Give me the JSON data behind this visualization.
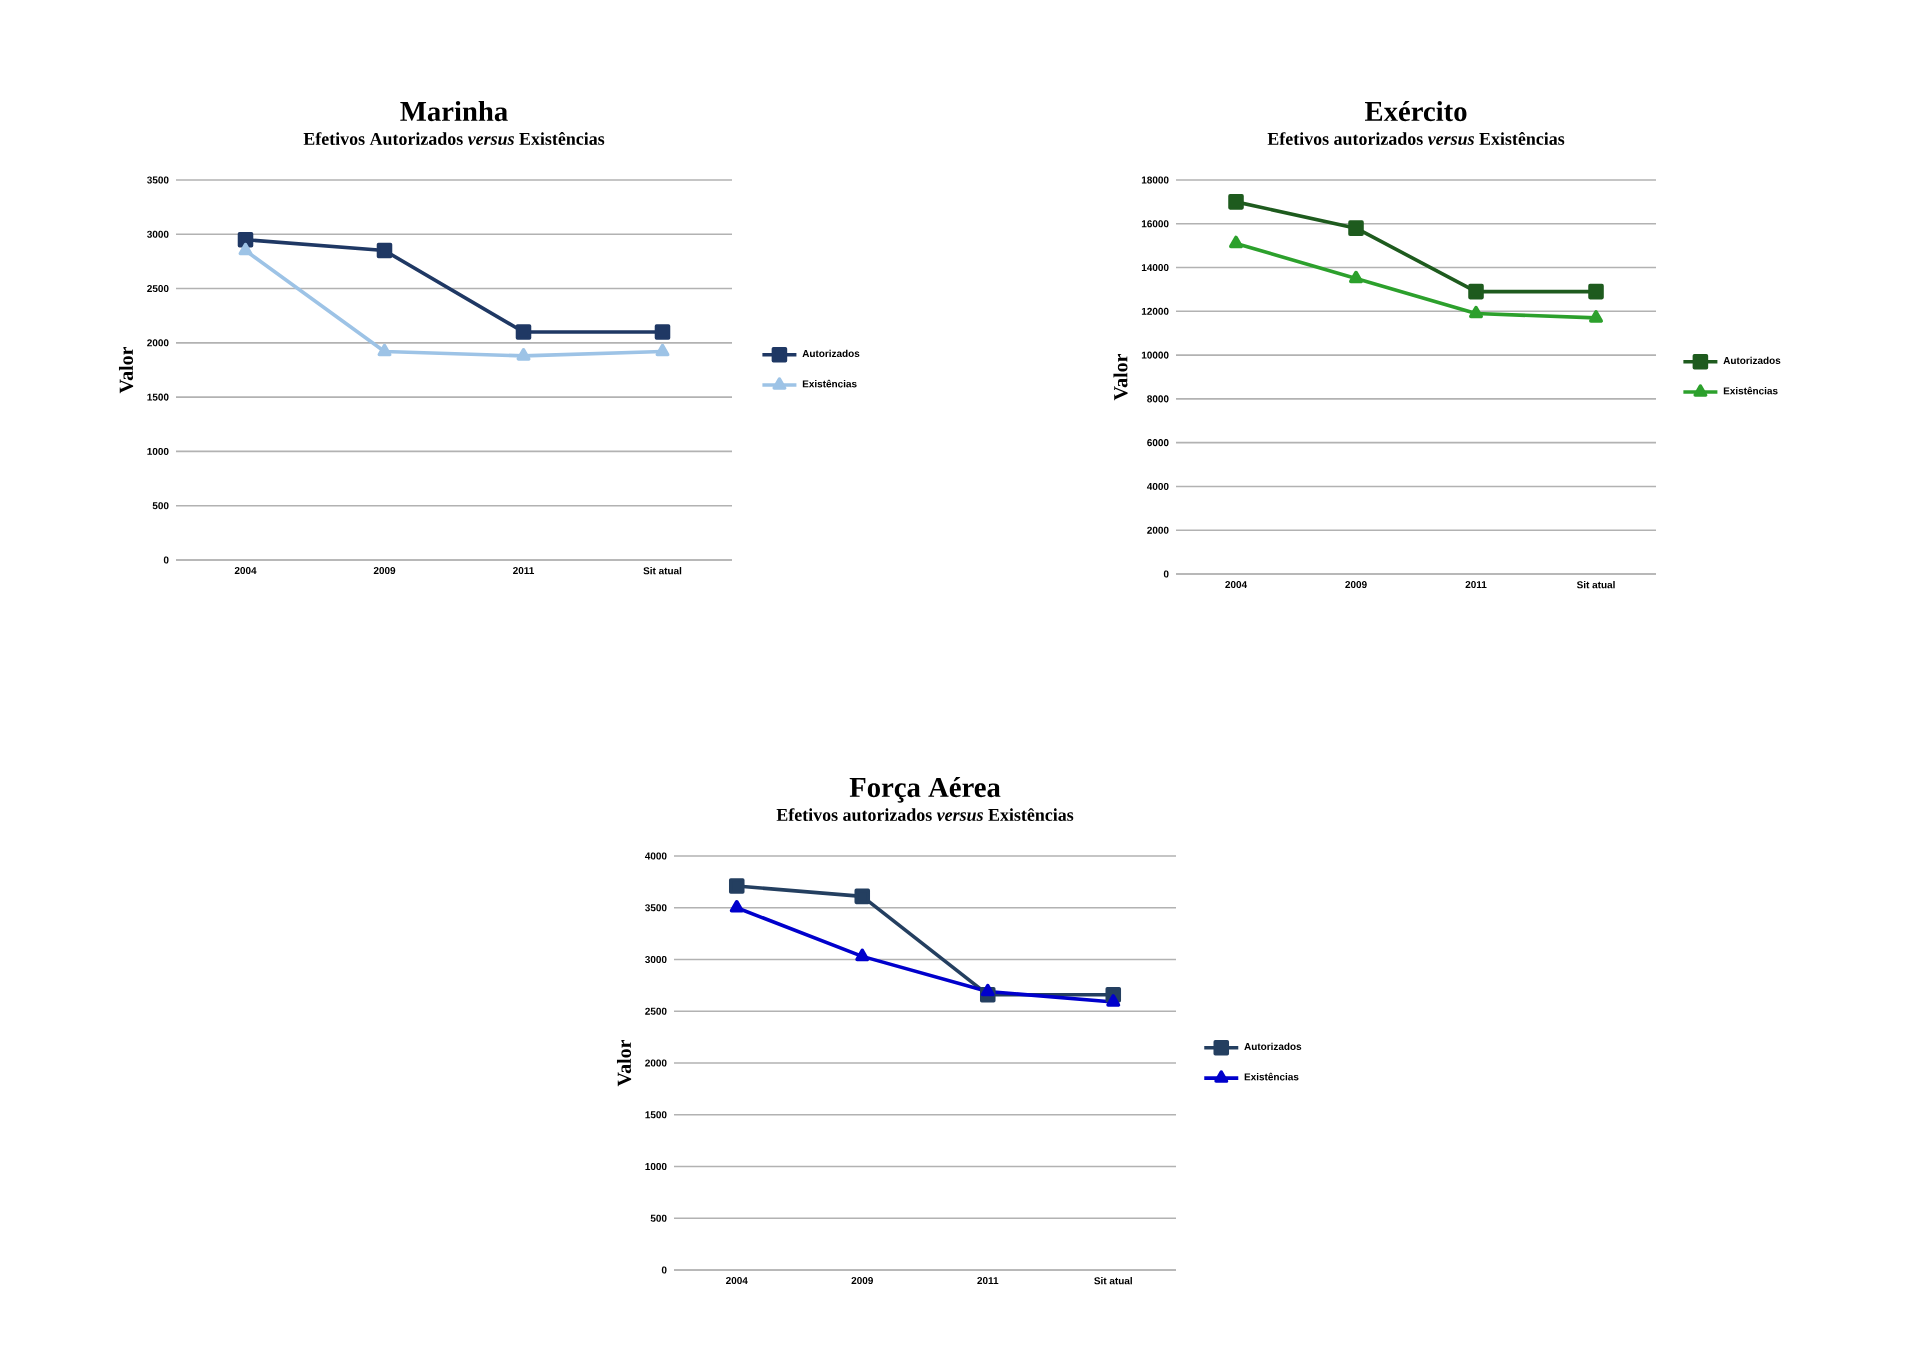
{
  "chart_data": [
    {
      "type": "line",
      "title": "Marinha",
      "subtitle": "Efetivos Autorizados *versus* Existências",
      "ylabel": "Valor",
      "categories": [
        "2004",
        "2009",
        "2011",
        "Sit atual"
      ],
      "ylim": [
        0,
        3500
      ],
      "yticks": [
        0,
        500,
        1000,
        1500,
        2000,
        2500,
        3000,
        3500
      ],
      "grid": "y",
      "legend": "right",
      "series": [
        {
          "name": "Autorizados",
          "color": "#1f3864",
          "marker": "square",
          "values": [
            2950,
            2850,
            2100,
            2100
          ]
        },
        {
          "name": "Existências",
          "color": "#9dc3e6",
          "marker": "triangle",
          "values": [
            2850,
            1920,
            1880,
            1920
          ]
        }
      ]
    },
    {
      "type": "line",
      "title": "Exército",
      "subtitle": "Efetivos autorizados *versus* Existências",
      "ylabel": "Valor",
      "categories": [
        "2004",
        "2009",
        "2011",
        "Sit atual"
      ],
      "ylim": [
        0,
        18000
      ],
      "yticks": [
        0,
        2000,
        4000,
        6000,
        8000,
        10000,
        12000,
        14000,
        16000,
        18000
      ],
      "grid": "y",
      "legend": "right",
      "series": [
        {
          "name": "Autorizados",
          "color": "#1e5b1e",
          "marker": "square",
          "values": [
            17000,
            15800,
            12900,
            12900
          ]
        },
        {
          "name": "Existências",
          "color": "#2ca02c",
          "marker": "triangle",
          "values": [
            15100,
            13500,
            11900,
            11700
          ]
        }
      ]
    },
    {
      "type": "line",
      "title": "Força Aérea",
      "subtitle": "Efetivos autorizados *versus* Existências",
      "ylabel": "Valor",
      "categories": [
        "2004",
        "2009",
        "2011",
        "Sit atual"
      ],
      "ylim": [
        0,
        4000
      ],
      "yticks": [
        0,
        500,
        1000,
        1500,
        2000,
        2500,
        3000,
        3500,
        4000
      ],
      "grid": "y",
      "legend": "right",
      "series": [
        {
          "name": "Autorizados",
          "color": "#243f60",
          "marker": "square",
          "values": [
            3710,
            3610,
            2660,
            2660
          ]
        },
        {
          "name": "Existências",
          "color": "#0000cc",
          "marker": "triangle",
          "values": [
            3500,
            3030,
            2690,
            2590
          ]
        }
      ]
    }
  ]
}
